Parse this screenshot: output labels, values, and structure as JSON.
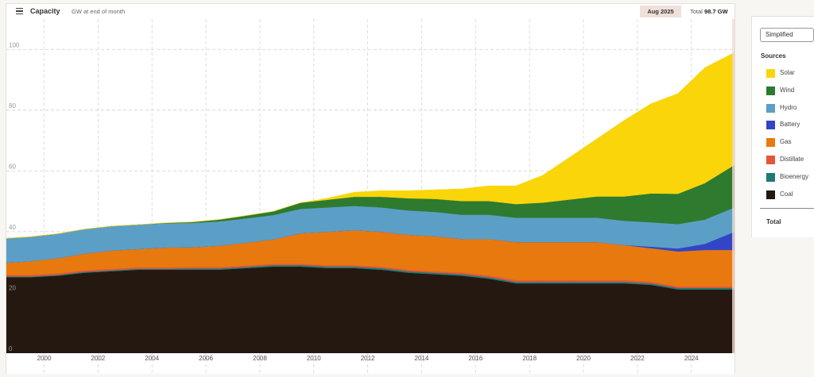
{
  "header": {
    "title": "Capacity",
    "subtitle": "GW at end of month",
    "date_badge": "Aug 2025",
    "total_prefix": "Total",
    "total_value": "98.7 GW"
  },
  "side_panel": {
    "view_select": "Simplified",
    "sources_heading": "Sources",
    "total_row": "Total"
  },
  "colors": {
    "Coal": "#251810",
    "Bioenergy": "#1e7a74",
    "Distillate": "#e2573a",
    "Gas": "#e8790f",
    "Battery": "#3245c7",
    "Hydro": "#5b9fc7",
    "Wind": "#2e7a2f",
    "Solar": "#fad50a"
  },
  "legend": [
    "Solar",
    "Wind",
    "Hydro",
    "Battery",
    "Gas",
    "Distillate",
    "Bioenergy",
    "Coal"
  ],
  "chart_data": {
    "type": "area",
    "stacked": true,
    "title": "Capacity",
    "ylabel": "GW at end of month",
    "ylim": [
      0,
      110
    ],
    "xlim": [
      1998.6,
      2025.6
    ],
    "yticks": [
      0,
      20,
      40,
      60,
      80,
      100
    ],
    "xticks": [
      2000,
      2002,
      2004,
      2006,
      2008,
      2010,
      2012,
      2014,
      2016,
      2018,
      2020,
      2022,
      2024
    ],
    "grid": true,
    "x": [
      1998.6,
      1999.5,
      2000.5,
      2001.5,
      2002.5,
      2003.5,
      2004.5,
      2005.5,
      2006.5,
      2007.5,
      2008.5,
      2009.5,
      2010.5,
      2011.5,
      2012.5,
      2013.5,
      2014.5,
      2015.5,
      2016.5,
      2017.5,
      2018.5,
      2019.5,
      2020.5,
      2021.5,
      2022.5,
      2023.5,
      2024.5,
      2025.6
    ],
    "series": [
      {
        "name": "Coal",
        "values": [
          25,
          25,
          25.5,
          26.5,
          27,
          27.5,
          27.5,
          27.5,
          27.5,
          28,
          28.5,
          28.5,
          28,
          28,
          27.5,
          26.5,
          26,
          25.5,
          24.5,
          23,
          23,
          23,
          23,
          23,
          22.5,
          21,
          21,
          21
        ]
      },
      {
        "name": "Bioenergy",
        "values": [
          0.3,
          0.3,
          0.3,
          0.3,
          0.3,
          0.3,
          0.3,
          0.4,
          0.4,
          0.4,
          0.5,
          0.5,
          0.5,
          0.5,
          0.5,
          0.5,
          0.5,
          0.5,
          0.5,
          0.5,
          0.5,
          0.5,
          0.5,
          0.5,
          0.5,
          0.5,
          0.5,
          0.5
        ]
      },
      {
        "name": "Distillate",
        "values": [
          0.5,
          0.5,
          0.5,
          0.5,
          0.5,
          0.5,
          0.5,
          0.5,
          0.5,
          0.5,
          0.5,
          0.5,
          0.5,
          0.5,
          0.5,
          0.5,
          0.5,
          0.6,
          0.6,
          0.6,
          0.6,
          0.6,
          0.6,
          0.6,
          0.6,
          0.5,
          0.5,
          0.5
        ]
      },
      {
        "name": "Gas",
        "values": [
          4,
          4.5,
          5,
          5.5,
          6,
          6,
          6.5,
          6.5,
          7,
          7.5,
          8,
          10,
          11,
          11.5,
          11.5,
          11.5,
          11.5,
          11,
          12,
          12.5,
          12.5,
          12.5,
          12.5,
          11.5,
          11,
          11.5,
          12,
          12
        ]
      },
      {
        "name": "Battery",
        "values": [
          0,
          0,
          0,
          0,
          0,
          0,
          0,
          0,
          0,
          0,
          0,
          0,
          0,
          0,
          0,
          0,
          0,
          0,
          0,
          0,
          0,
          0,
          0,
          0,
          0.5,
          1,
          2,
          6
        ]
      },
      {
        "name": "Hydro",
        "values": [
          8,
          8,
          8,
          8,
          8,
          8,
          8,
          8,
          8,
          8,
          8,
          8,
          8,
          8,
          8,
          8,
          8,
          8,
          8,
          8,
          8,
          8,
          8,
          8,
          8,
          8,
          8,
          8
        ]
      },
      {
        "name": "Wind",
        "values": [
          0,
          0,
          0,
          0,
          0,
          0,
          0.1,
          0.3,
          0.6,
          0.9,
          1.2,
          2,
          2.5,
          3,
          3.5,
          4,
          4.3,
          4.5,
          4.5,
          4.5,
          5,
          6,
          7,
          8,
          9.5,
          10,
          12,
          14
        ]
      },
      {
        "name": "Solar",
        "values": [
          0,
          0,
          0,
          0,
          0,
          0,
          0,
          0,
          0,
          0,
          0,
          0,
          0.5,
          1.5,
          2,
          2.5,
          3,
          4,
          5,
          6,
          9,
          14,
          19,
          25,
          29.5,
          33,
          38,
          37
        ]
      }
    ]
  }
}
